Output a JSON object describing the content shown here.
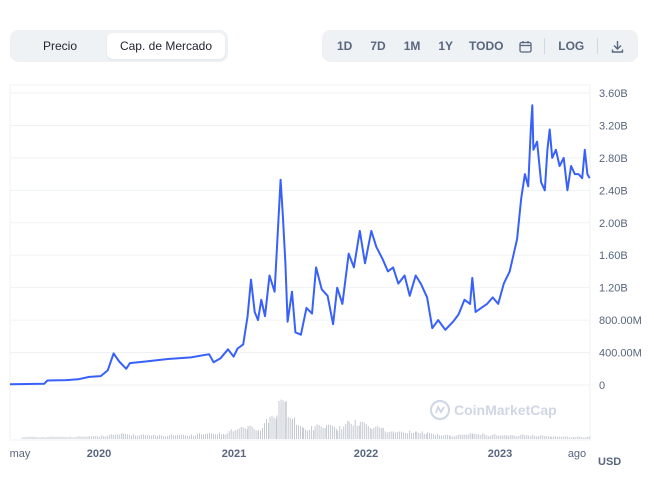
{
  "toolbar": {
    "toggle": [
      {
        "label": "Precio",
        "active": false
      },
      {
        "label": "Cap. de Mercado",
        "active": true
      }
    ],
    "ranges": [
      "1D",
      "7D",
      "1M",
      "1Y",
      "TODO"
    ],
    "calendar_icon": "calendar-icon",
    "log_label": "LOG",
    "download_icon": "download-icon"
  },
  "watermark": "CoinMarketCap",
  "currency": "USD",
  "colors": {
    "line": "#3861fb",
    "volume": "#c3c8d1",
    "grid": "#eff2f5",
    "text": "#58667e"
  },
  "chart_data": {
    "type": "line",
    "title": "",
    "xlabel": "",
    "ylabel": "",
    "x_ticks": [
      "may",
      "2020",
      "2021",
      "2022",
      "2023",
      "ago"
    ],
    "y_ticks": [
      "0",
      "400.00M",
      "800.00M",
      "1.20B",
      "1.60B",
      "2.00B",
      "2.40B",
      "2.80B",
      "3.20B",
      "3.60B"
    ],
    "ylim": [
      0,
      3600000000
    ],
    "xlim": [
      "2019-05-01",
      "2023-08-15"
    ],
    "grid": true,
    "series": [
      {
        "values": [
          [
            "2019-05-01",
            10000000
          ],
          [
            "2019-08-01",
            15000000
          ],
          [
            "2019-08-10",
            55000000
          ],
          [
            "2019-10-01",
            60000000
          ],
          [
            "2019-11-01",
            70000000
          ],
          [
            "2019-12-01",
            100000000
          ],
          [
            "2020-01-01",
            110000000
          ],
          [
            "2020-01-20",
            180000000
          ],
          [
            "2020-02-05",
            390000000
          ],
          [
            "2020-02-20",
            290000000
          ],
          [
            "2020-03-10",
            200000000
          ],
          [
            "2020-03-20",
            270000000
          ],
          [
            "2020-05-01",
            290000000
          ],
          [
            "2020-07-01",
            320000000
          ],
          [
            "2020-09-01",
            340000000
          ],
          [
            "2020-10-20",
            380000000
          ],
          [
            "2020-11-01",
            280000000
          ],
          [
            "2020-11-20",
            330000000
          ],
          [
            "2020-12-10",
            440000000
          ],
          [
            "2020-12-25",
            350000000
          ],
          [
            "2021-01-05",
            450000000
          ],
          [
            "2021-01-20",
            500000000
          ],
          [
            "2021-02-01",
            850000000
          ],
          [
            "2021-02-10",
            1300000000
          ],
          [
            "2021-02-20",
            900000000
          ],
          [
            "2021-03-01",
            800000000
          ],
          [
            "2021-03-10",
            1050000000
          ],
          [
            "2021-03-20",
            850000000
          ],
          [
            "2021-04-01",
            1350000000
          ],
          [
            "2021-04-15",
            1150000000
          ],
          [
            "2021-05-01",
            2530000000
          ],
          [
            "2021-05-07",
            2100000000
          ],
          [
            "2021-05-14",
            1500000000
          ],
          [
            "2021-05-20",
            780000000
          ],
          [
            "2021-06-01",
            1150000000
          ],
          [
            "2021-06-10",
            650000000
          ],
          [
            "2021-06-25",
            620000000
          ],
          [
            "2021-07-10",
            950000000
          ],
          [
            "2021-07-25",
            880000000
          ],
          [
            "2021-08-05",
            1450000000
          ],
          [
            "2021-08-20",
            1180000000
          ],
          [
            "2021-09-05",
            1100000000
          ],
          [
            "2021-09-20",
            750000000
          ],
          [
            "2021-10-01",
            1200000000
          ],
          [
            "2021-10-15",
            1000000000
          ],
          [
            "2021-11-01",
            1620000000
          ],
          [
            "2021-11-15",
            1450000000
          ],
          [
            "2021-12-01",
            1900000000
          ],
          [
            "2021-12-15",
            1500000000
          ],
          [
            "2022-01-01",
            1900000000
          ],
          [
            "2022-01-15",
            1700000000
          ],
          [
            "2022-02-01",
            1550000000
          ],
          [
            "2022-02-15",
            1400000000
          ],
          [
            "2022-03-01",
            1450000000
          ],
          [
            "2022-03-15",
            1250000000
          ],
          [
            "2022-04-01",
            1350000000
          ],
          [
            "2022-04-15",
            1100000000
          ],
          [
            "2022-05-01",
            1350000000
          ],
          [
            "2022-05-15",
            1250000000
          ],
          [
            "2022-06-01",
            1080000000
          ],
          [
            "2022-06-15",
            700000000
          ],
          [
            "2022-07-01",
            800000000
          ],
          [
            "2022-07-20",
            680000000
          ],
          [
            "2022-08-10",
            780000000
          ],
          [
            "2022-08-25",
            870000000
          ],
          [
            "2022-09-10",
            1050000000
          ],
          [
            "2022-09-25",
            1000000000
          ],
          [
            "2022-10-01",
            1320000000
          ],
          [
            "2022-10-10",
            900000000
          ],
          [
            "2022-10-25",
            950000000
          ],
          [
            "2022-11-10",
            1000000000
          ],
          [
            "2022-11-25",
            1080000000
          ],
          [
            "2022-12-10",
            1000000000
          ],
          [
            "2022-12-25",
            1250000000
          ],
          [
            "2023-01-10",
            1400000000
          ],
          [
            "2023-01-20",
            1600000000
          ],
          [
            "2023-01-30",
            1800000000
          ],
          [
            "2023-02-10",
            2300000000
          ],
          [
            "2023-02-20",
            2600000000
          ],
          [
            "2023-03-01",
            2450000000
          ],
          [
            "2023-03-08",
            3150000000
          ],
          [
            "2023-03-12",
            3450000000
          ],
          [
            "2023-03-15",
            2900000000
          ],
          [
            "2023-03-25",
            3000000000
          ],
          [
            "2023-04-05",
            2500000000
          ],
          [
            "2023-04-15",
            2400000000
          ],
          [
            "2023-04-22",
            2900000000
          ],
          [
            "2023-04-28",
            3150000000
          ],
          [
            "2023-05-05",
            2800000000
          ],
          [
            "2023-05-15",
            2900000000
          ],
          [
            "2023-05-25",
            2700000000
          ],
          [
            "2023-06-05",
            2800000000
          ],
          [
            "2023-06-15",
            2400000000
          ],
          [
            "2023-06-25",
            2700000000
          ],
          [
            "2023-07-05",
            2600000000
          ],
          [
            "2023-07-15",
            2600000000
          ],
          [
            "2023-07-25",
            2550000000
          ],
          [
            "2023-08-01",
            2900000000
          ],
          [
            "2023-08-08",
            2600000000
          ],
          [
            "2023-08-14",
            2550000000
          ]
        ]
      }
    ],
    "volume": [
      [
        "2019-06-01",
        0.05
      ],
      [
        "2019-09-01",
        0.05
      ],
      [
        "2019-12-01",
        0.06
      ],
      [
        "2020-03-01",
        0.12
      ],
      [
        "2020-06-01",
        0.08
      ],
      [
        "2020-09-01",
        0.1
      ],
      [
        "2020-12-01",
        0.15
      ],
      [
        "2021-02-01",
        0.3
      ],
      [
        "2021-03-01",
        0.25
      ],
      [
        "2021-04-01",
        0.45
      ],
      [
        "2021-04-20",
        0.7
      ],
      [
        "2021-05-01",
        1.0
      ],
      [
        "2021-05-15",
        0.85
      ],
      [
        "2021-06-01",
        0.45
      ],
      [
        "2021-07-01",
        0.25
      ],
      [
        "2021-08-01",
        0.3
      ],
      [
        "2021-09-01",
        0.35
      ],
      [
        "2021-10-01",
        0.25
      ],
      [
        "2021-11-01",
        0.45
      ],
      [
        "2021-12-01",
        0.4
      ],
      [
        "2022-01-01",
        0.3
      ],
      [
        "2022-02-01",
        0.25
      ],
      [
        "2022-03-01",
        0.15
      ],
      [
        "2022-05-01",
        0.2
      ],
      [
        "2022-06-01",
        0.15
      ],
      [
        "2022-08-01",
        0.08
      ],
      [
        "2022-10-01",
        0.12
      ],
      [
        "2023-01-01",
        0.08
      ],
      [
        "2023-03-01",
        0.1
      ],
      [
        "2023-05-01",
        0.06
      ],
      [
        "2023-07-01",
        0.05
      ]
    ]
  }
}
